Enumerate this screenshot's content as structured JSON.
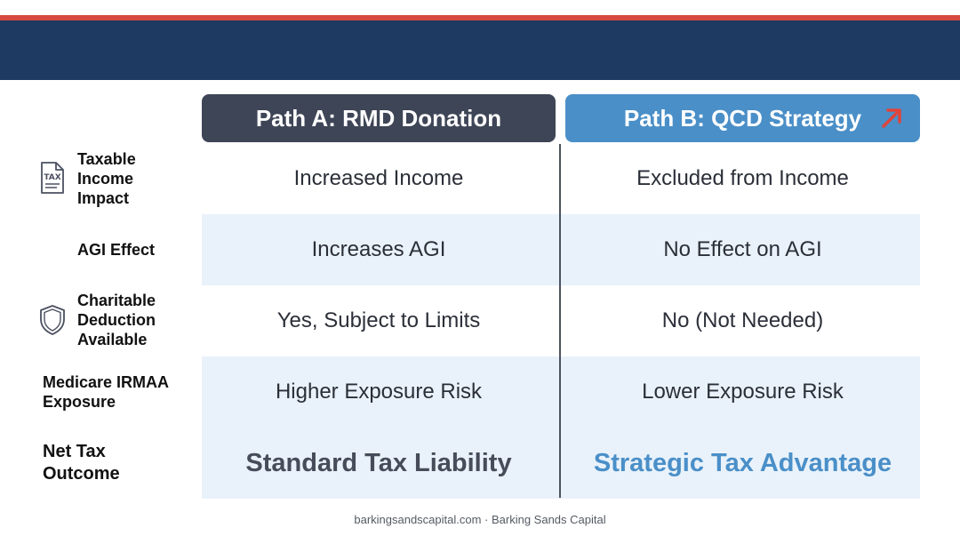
{
  "header": {
    "columns": [
      {
        "label": "Path A: RMD Donation"
      },
      {
        "label": "Path B: QCD Strategy",
        "icon": "trend-up-arrow-icon",
        "icon_color": "#e0443a"
      }
    ]
  },
  "rows": [
    {
      "label": "Taxable Income Impact",
      "icon": "tax-document-icon",
      "a": "Increased Income",
      "b": "Excluded from Income"
    },
    {
      "label": "AGI Effect",
      "a": "Increases AGI",
      "b": "No Effect on AGI"
    },
    {
      "label": "Charitable Deduction Available",
      "icon": "shield-icon",
      "a": "Yes, Subject to Limits",
      "b": "No (Not Needed)"
    },
    {
      "label": "Medicare IRMAA Exposure",
      "a": "Higher Exposure Risk",
      "b": "Lower Exposure Risk"
    },
    {
      "label": "Net Tax Outcome",
      "a": "Standard Tax Liability",
      "b": "Strategic Tax Advantage"
    }
  ],
  "footer": {
    "text": "barkingsandscapital.com · Barking Sands Capital"
  },
  "colors": {
    "header_band": "#1e3a62",
    "accent_stripe": "#d64a3f",
    "path_a": "#3e4556",
    "path_b": "#4a8fc8",
    "row_band": "#e9f2fa"
  }
}
